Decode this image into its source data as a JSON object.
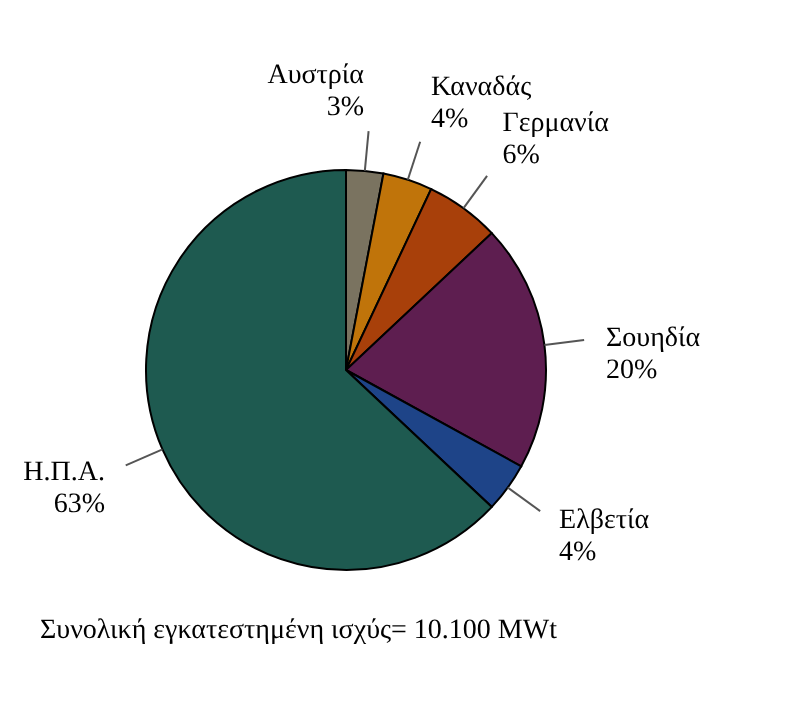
{
  "chart_data": {
    "type": "pie",
    "categories": [
      "Αυστρία",
      "Καναδάς",
      "Γερμανία",
      "Σουηδία",
      "Ελβετία",
      "Η.Π.Α."
    ],
    "values": [
      3,
      4,
      6,
      20,
      4,
      63
    ],
    "value_labels": [
      "3%",
      "4%",
      "6%",
      "20%",
      "4%",
      "63%"
    ],
    "colors": [
      "#7a7360",
      "#c0740a",
      "#a8400a",
      "#5e1e50",
      "#1e4488",
      "#1e5a50"
    ],
    "annotations": [
      "Συνολική εγκατεστημένη ισχύς= 10.100 MWt"
    ]
  }
}
